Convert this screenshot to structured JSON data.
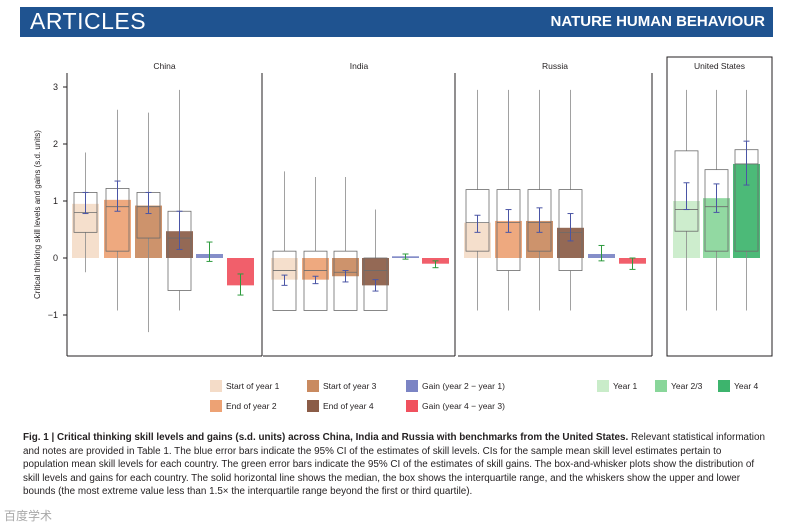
{
  "header": {
    "section": "ARTICLES",
    "journal": "NATURE HUMAN BEHAVIOUR"
  },
  "chart_data": {
    "type": "bar",
    "ylabel": "Critical thinking skill levels and gains (s.d. units)",
    "ylim": [
      -1.7,
      3.2
    ],
    "yticks": [
      -1,
      0,
      1,
      2,
      3
    ],
    "tick_labels": [
      "−1",
      "0",
      "1",
      "2",
      "3"
    ],
    "panels": [
      {
        "title": "China",
        "bars": [
          {
            "name": "Start of year 1",
            "value": 0.95,
            "ci": [
              0.78,
              1.15
            ],
            "ci_color": "blue",
            "box": [
              0.45,
              0.8,
              1.15
            ],
            "whisker": [
              -0.25,
              1.85
            ]
          },
          {
            "name": "End of year 2",
            "value": 1.02,
            "ci": [
              0.82,
              1.35
            ],
            "ci_color": "blue",
            "box": [
              0.12,
              0.9,
              1.22
            ],
            "whisker": [
              -0.92,
              2.6
            ]
          },
          {
            "name": "Start of year 3",
            "value": 0.92,
            "ci": [
              0.78,
              1.15
            ],
            "ci_color": "blue",
            "box": [
              0.35,
              0.9,
              1.15
            ],
            "whisker": [
              -1.3,
              2.55
            ]
          },
          {
            "name": "End of year 4",
            "value": 0.47,
            "ci": [
              0.15,
              0.82
            ],
            "ci_color": "blue",
            "box": [
              -0.57,
              0.35,
              0.82
            ],
            "whisker": [
              -0.92,
              2.95
            ]
          },
          {
            "name": "Gain (year 2 − year 1)",
            "value": 0.07,
            "ci": [
              -0.06,
              0.28
            ],
            "ci_color": "green"
          },
          {
            "name": "Gain (year 4 − year 3)",
            "value": -0.48,
            "ci": [
              -0.65,
              -0.28
            ],
            "ci_color": "green"
          }
        ]
      },
      {
        "title": "India",
        "bars": [
          {
            "name": "Start of year 1",
            "value": -0.38,
            "ci": [
              -0.48,
              -0.3
            ],
            "ci_color": "blue",
            "box": [
              -0.92,
              -0.22,
              0.12
            ],
            "whisker": [
              -0.92,
              1.52
            ]
          },
          {
            "name": "End of year 2",
            "value": -0.38,
            "ci": [
              -0.45,
              -0.32
            ],
            "ci_color": "blue",
            "box": [
              -0.92,
              -0.22,
              0.12
            ],
            "whisker": [
              -0.92,
              1.42
            ]
          },
          {
            "name": "Start of year 3",
            "value": -0.32,
            "ci": [
              -0.42,
              -0.22
            ],
            "ci_color": "blue",
            "box": [
              -0.92,
              -0.25,
              0.12
            ],
            "whisker": [
              -0.92,
              1.42
            ]
          },
          {
            "name": "End of year 4",
            "value": -0.48,
            "ci": [
              -0.58,
              -0.38
            ],
            "ci_color": "blue",
            "box": [
              -0.92,
              -0.22,
              0.0
            ],
            "whisker": [
              -0.92,
              0.85
            ]
          },
          {
            "name": "Gain (year 2 − year 1)",
            "value": 0.03,
            "ci": [
              -0.02,
              0.07
            ],
            "ci_color": "green"
          },
          {
            "name": "Gain (year 4 − year 3)",
            "value": -0.1,
            "ci": [
              -0.17,
              -0.05
            ],
            "ci_color": "green"
          }
        ]
      },
      {
        "title": "Russia",
        "bars": [
          {
            "name": "Start of year 1",
            "value": 0.62,
            "ci": [
              0.45,
              0.75
            ],
            "ci_color": "blue",
            "box": [
              0.12,
              0.62,
              1.2
            ],
            "whisker": [
              -0.92,
              2.95
            ]
          },
          {
            "name": "End of year 2",
            "value": 0.65,
            "ci": [
              0.45,
              0.85
            ],
            "ci_color": "blue",
            "box": [
              -0.22,
              0.62,
              1.2
            ],
            "whisker": [
              -0.92,
              2.95
            ]
          },
          {
            "name": "Start of year 3",
            "value": 0.65,
            "ci": [
              0.45,
              0.88
            ],
            "ci_color": "blue",
            "box": [
              0.12,
              0.62,
              1.2
            ],
            "whisker": [
              -0.92,
              2.95
            ]
          },
          {
            "name": "End of year 4",
            "value": 0.53,
            "ci": [
              0.3,
              0.78
            ],
            "ci_color": "blue",
            "box": [
              -0.22,
              0.45,
              1.2
            ],
            "whisker": [
              -0.92,
              2.95
            ]
          },
          {
            "name": "Gain (year 2 − year 1)",
            "value": 0.07,
            "ci": [
              -0.05,
              0.22
            ],
            "ci_color": "green"
          },
          {
            "name": "Gain (year 4 − year 3)",
            "value": -0.1,
            "ci": [
              -0.2,
              0.0
            ],
            "ci_color": "green"
          }
        ]
      },
      {
        "title": "United States",
        "bars": [
          {
            "name": "Year 1",
            "value": 1.0,
            "ci": [
              0.85,
              1.32
            ],
            "ci_color": "blue",
            "box": [
              0.47,
              0.85,
              1.88
            ],
            "whisker": [
              -0.92,
              2.95
            ]
          },
          {
            "name": "Year 2/3",
            "value": 1.05,
            "ci": [
              0.8,
              1.3
            ],
            "ci_color": "blue",
            "box": [
              0.12,
              0.9,
              1.55
            ],
            "whisker": [
              -0.92,
              2.95
            ]
          },
          {
            "name": "Year 4",
            "value": 1.65,
            "ci": [
              1.28,
              2.05
            ],
            "ci_color": "blue",
            "box": [
              0.12,
              1.65,
              1.9
            ],
            "whisker": [
              -0.92,
              2.95
            ]
          }
        ]
      }
    ],
    "legend": [
      {
        "label": "Start of year 1",
        "color": "#f4dcc8"
      },
      {
        "label": "End of year 2",
        "color": "#eda274"
      },
      {
        "label": "Gain (year 2 − year 1)",
        "color": "#7b84c4"
      },
      {
        "label": "Start of year 3",
        "color": "#c98a60"
      },
      {
        "label": "End of year 4",
        "color": "#8b5c47"
      },
      {
        "label": "Gain (year 4 − year 3)",
        "color": "#f0515e"
      },
      {
        "label": "Year 1",
        "color": "#c9ecc9"
      },
      {
        "label": "Year 2/3",
        "color": "#89d69a"
      },
      {
        "label": "Year 4",
        "color": "#3db46d"
      }
    ],
    "colors": {
      "start_y1": "#f4dcc8",
      "end_y2": "#eda274",
      "start_y3": "#c98a60",
      "end_y4": "#8b5c47",
      "gain_12": "#7b84c4",
      "gain_34": "#f0515e",
      "us_y1": "#c9ecc9",
      "us_y23": "#89d69a",
      "us_y4": "#3db46d",
      "ci_blue": "#4a55a5",
      "ci_green": "#2e9b3e",
      "whisker": "#8a8a8a"
    }
  },
  "caption": {
    "label": "Fig. 1 |",
    "title": "Critical thinking skill levels and gains (s.d. units) across China, India and Russia with benchmarks from the United States.",
    "body": "Relevant statistical information and notes are provided in Table 1. The blue error bars indicate the 95% CI of the estimates of skill levels. CIs for the sample mean skill level estimates pertain to population mean skill levels for each country. The green error bars indicate the 95% CI of the estimates of skill gains. The box-and-whisker plots show the distribution of skill levels and gains for each country. The solid horizontal line shows the median, the box shows the interquartile range, and the whiskers show the upper and lower bounds (the most extreme value less than 1.5× the interquartile range beyond the first or third quartile)."
  },
  "watermark": "百度学术"
}
